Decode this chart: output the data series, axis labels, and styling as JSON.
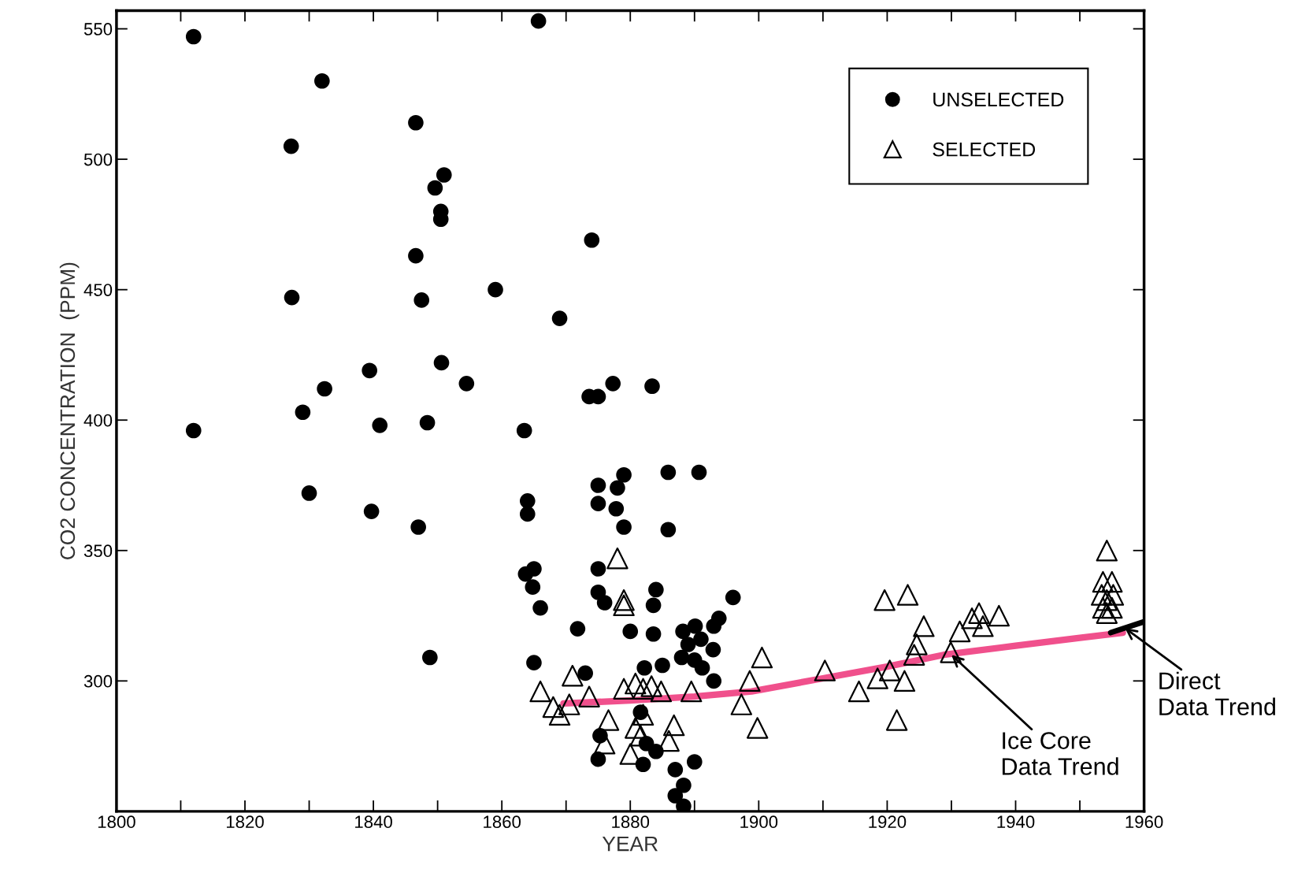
{
  "chart_data": {
    "type": "scatter",
    "xlabel": "YEAR",
    "ylabel": "CO2 CONCENTRATION  (PPM)",
    "xlim": [
      1800,
      1960
    ],
    "ylim": [
      250,
      557
    ],
    "xticks": [
      1800,
      {
        "value": 1810,
        "label": null
      },
      1820,
      {
        "value": 1830,
        "label": null
      },
      1840,
      {
        "value": 1850,
        "label": null
      },
      1860,
      {
        "value": 1870,
        "label": null
      },
      1880,
      {
        "value": 1890,
        "label": null
      },
      1900,
      {
        "value": 1910,
        "label": null
      },
      1920,
      {
        "value": 1930,
        "label": null
      },
      1940,
      {
        "value": 1950,
        "label": null
      },
      1960
    ],
    "yticks": [
      300,
      350,
      400,
      450,
      500,
      550
    ],
    "grid": false,
    "legend": "top right",
    "series": [
      {
        "name": "UNSELECTED",
        "marker": "circle",
        "color": "#000000",
        "x": [
          1812,
          1812,
          1827.2,
          1827.3,
          1832,
          1829,
          1832.4,
          1830,
          1839.4,
          1839.7,
          1841,
          1846.6,
          1846.6,
          1847.5,
          1850.6,
          1848.4,
          1847,
          1848.8,
          1849.6,
          1851,
          1850.5,
          1850.5,
          1854.5,
          1859,
          1865.7,
          1863.5,
          1864,
          1864,
          1863.7,
          1865,
          1864.8,
          1866,
          1865,
          1869,
          1874,
          1873.6,
          1875,
          1877.3,
          1883.4,
          1875,
          1875,
          1878,
          1879,
          1877.8,
          1879,
          1885.9,
          1890.7,
          1885.9,
          1875,
          1875,
          1876,
          1871.8,
          1873,
          1884,
          1883.6,
          1880,
          1883.6,
          1896,
          1888.2,
          1890.1,
          1893,
          1893.8,
          1891,
          1889,
          1892.9,
          1888,
          1890,
          1891.2,
          1893,
          1885,
          1882.2,
          1881.6,
          1882.5,
          1884,
          1882,
          1875.3,
          1875,
          1890,
          1887,
          1888.3,
          1887,
          1888.3
        ],
        "values": [
          547,
          396,
          505,
          447,
          530,
          403,
          412,
          372,
          419,
          365,
          398,
          514,
          463,
          446,
          422,
          399,
          359,
          309,
          489,
          494,
          480,
          477,
          414,
          450,
          553,
          396,
          369,
          364,
          341,
          343,
          336,
          328,
          307,
          439,
          469,
          409,
          409,
          414,
          413,
          375,
          368,
          374,
          379,
          366,
          359,
          380,
          380,
          358,
          343,
          334,
          330,
          320,
          303,
          335,
          329,
          319,
          318,
          332,
          319,
          321,
          321,
          324,
          316,
          314,
          312,
          309,
          308,
          305,
          300,
          306,
          305,
          288,
          276,
          273,
          268,
          279,
          270,
          269,
          266,
          260,
          256,
          252
        ]
      },
      {
        "name": "SELECTED",
        "marker": "triangle",
        "color": "#000000",
        "x": [
          1866,
          1871,
          1868,
          1869,
          1870.5,
          1873.6,
          1878,
          1879,
          1879,
          1879,
          1880.8,
          1882,
          1883.3,
          1884.8,
          1876.6,
          1882,
          1880.8,
          1881.6,
          1876,
          1880,
          1886.8,
          1886,
          1889.5,
          1900.5,
          1898.6,
          1897.3,
          1899.8,
          1910.3,
          1915.6,
          1918.5,
          1920.4,
          1922.7,
          1921.5,
          1919.6,
          1923.2,
          1925.7,
          1924.6,
          1924.2,
          1929.9,
          1931.3,
          1933.2,
          1934.3,
          1934.9,
          1937.4,
          1954.2,
          1953.6,
          1955,
          1953.4,
          1954.2,
          1955.2,
          1953.6,
          1955,
          1954.2
        ],
        "values": [
          296,
          302,
          290,
          287,
          291,
          294,
          347,
          331,
          329,
          297,
          299,
          297,
          298,
          296,
          285,
          287,
          282,
          279,
          276,
          272,
          283,
          277,
          296,
          309,
          300,
          291,
          282,
          304,
          296,
          301,
          304,
          300,
          285,
          331,
          333,
          321,
          314,
          310,
          311,
          319,
          324,
          326,
          321,
          325,
          350,
          338,
          338,
          333,
          331,
          333,
          328,
          328,
          326
        ]
      },
      {
        "type": "line",
        "color": "#f0508c",
        "marker": "none",
        "line_style": "solid",
        "x": [
          1869.6,
          1880,
          1890,
          1898.9,
          1910,
          1920,
          1928.8,
          1940,
          1950,
          1956.7
        ],
        "values": [
          291.4,
          292.5,
          294,
          296,
          301,
          305.5,
          310,
          313.5,
          316.5,
          318.5
        ]
      },
      {
        "type": "line",
        "color": "#000000",
        "marker": "none",
        "line_style": "solid",
        "x": [
          1954.8,
          1960
        ],
        "values": [
          318.5,
          322.7
        ]
      }
    ],
    "annotations": [
      {
        "text": "Ice Core\nData Trend",
        "x": 1930,
        "y": 310
      },
      {
        "text": "Direct\nData Trend",
        "x": 1957,
        "y": 320.3
      }
    ]
  }
}
